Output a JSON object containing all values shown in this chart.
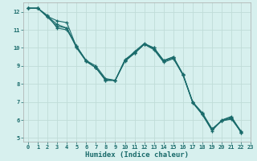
{
  "title": "",
  "xlabel": "Humidex (Indice chaleur)",
  "ylabel": "",
  "background_color": "#d7f0ee",
  "grid_color": "#c0dcd8",
  "line_color": "#1a6b6b",
  "xlim": [
    -0.5,
    23
  ],
  "ylim": [
    4.8,
    12.5
  ],
  "yticks": [
    5,
    6,
    7,
    8,
    9,
    10,
    11,
    12
  ],
  "xticks": [
    0,
    1,
    2,
    3,
    4,
    5,
    6,
    7,
    8,
    9,
    10,
    11,
    12,
    13,
    14,
    15,
    16,
    17,
    18,
    19,
    20,
    21,
    22,
    23
  ],
  "xlabel_fontsize": 6.5,
  "tick_fontsize": 5.0,
  "series": [
    [
      12.2,
      12.2,
      11.8,
      11.1,
      11.0,
      10.1,
      9.3,
      9.0,
      8.3,
      8.2,
      9.3,
      9.7,
      10.2,
      10.0,
      9.3,
      9.5,
      8.5,
      7.0,
      6.3,
      5.4,
      6.0,
      6.2,
      5.3
    ],
    [
      12.2,
      12.2,
      11.7,
      11.2,
      11.1,
      10.1,
      9.25,
      8.9,
      8.2,
      8.2,
      9.35,
      9.75,
      10.2,
      9.95,
      9.25,
      9.45,
      8.5,
      6.95,
      6.3,
      5.45,
      5.95,
      6.1,
      5.3
    ],
    [
      12.2,
      12.2,
      11.75,
      11.3,
      11.1,
      10.0,
      9.25,
      8.9,
      8.2,
      8.2,
      9.25,
      9.7,
      10.2,
      9.9,
      9.2,
      9.4,
      8.5,
      7.0,
      6.35,
      5.5,
      5.95,
      6.05,
      5.35
    ],
    [
      12.2,
      12.2,
      11.75,
      11.5,
      11.4,
      10.05,
      9.3,
      8.9,
      8.25,
      8.2,
      9.3,
      9.8,
      10.25,
      10.0,
      9.3,
      9.5,
      8.55,
      7.0,
      6.4,
      5.5,
      5.98,
      6.15,
      5.38
    ]
  ]
}
